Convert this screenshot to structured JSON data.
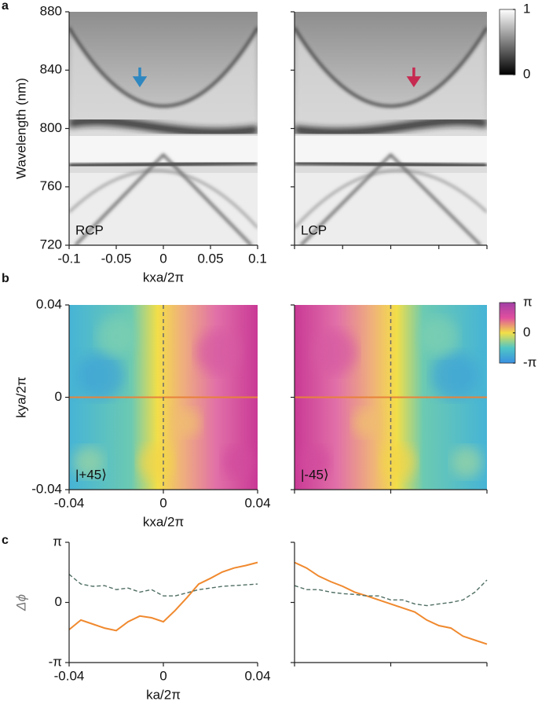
{
  "chart_data": [
    {
      "type": "heatmap",
      "panel": "a",
      "colormap": "gray",
      "ylabel": "Wavelength (nm)",
      "xlabel": "kxa/2π",
      "annotation": "RCP",
      "arrow": {
        "x": -0.025,
        "y": 830,
        "color": "#2f87c0"
      },
      "xlim": [
        -0.1,
        0.1
      ],
      "ylim": [
        720,
        880
      ],
      "xticks": [
        -0.1,
        -0.05,
        0,
        0.05,
        0.1
      ],
      "yticks": [
        720,
        760,
        800,
        840,
        880
      ]
    },
    {
      "type": "heatmap",
      "colormap": "gray",
      "annotation": "LCP",
      "tick_labels": false,
      "arrow": {
        "x": 0.024,
        "y": 830,
        "color": "#c62a50"
      },
      "xlim": [
        -0.1,
        0.1
      ],
      "ylim": [
        720,
        880
      ],
      "xticks": [
        -0.1,
        -0.05,
        0,
        0.05,
        0.1
      ],
      "yticks": [
        720,
        760,
        800,
        840,
        880
      ],
      "colorbar": {
        "clim": [
          0,
          1
        ],
        "ticks": [
          0,
          1
        ]
      }
    },
    {
      "type": "heatmap",
      "panel": "b",
      "colormap": "phase",
      "ylabel": "kya/2π",
      "xlabel": "kxa/2π",
      "annotation": "|+45⟩",
      "xlim": [
        -0.04,
        0.04
      ],
      "ylim": [
        -0.04,
        0.04
      ],
      "xticks": [
        -0.04,
        0,
        0.04
      ],
      "yticks": [
        -0.04,
        0,
        0.04
      ]
    },
    {
      "type": "heatmap",
      "colormap": "phase",
      "annotation": "|-45⟩",
      "tick_labels": false,
      "xlim": [
        -0.04,
        0.04
      ],
      "ylim": [
        -0.04,
        0.04
      ],
      "xticks": [
        -0.04,
        0,
        0.04
      ],
      "yticks": [
        -0.04,
        0,
        0.04
      ],
      "colorbar": {
        "clim": [
          -3.1416,
          3.1416
        ],
        "ticks": [
          {
            "value": 3.1416,
            "label": "π"
          },
          0,
          {
            "value": -3.1416,
            "label": "-π"
          }
        ]
      }
    },
    {
      "type": "line",
      "panel": "c",
      "ylabel": "Δϕ",
      "xlabel": "ka/2π",
      "xlim": [
        -0.04,
        0.04
      ],
      "ylim": [
        -3.1416,
        3.1416
      ],
      "xticks": [
        -0.04,
        0,
        0.04
      ],
      "yticks": [
        {
          "value": -3.1416,
          "label": "-π"
        },
        0,
        {
          "value": 3.1416,
          "label": "π"
        }
      ],
      "x": [
        -0.04,
        -0.035,
        -0.03,
        -0.025,
        -0.02,
        -0.015,
        -0.01,
        -0.005,
        0,
        0.005,
        0.01,
        0.015,
        0.02,
        0.025,
        0.03,
        0.035,
        0.04
      ],
      "series": [
        {
          "color": "#f0892e",
          "style": "solid",
          "values": [
            -1.42,
            -0.92,
            -1.13,
            -1.34,
            -1.47,
            -1.01,
            -0.71,
            -0.8,
            -1.01,
            -0.42,
            0.25,
            0.96,
            1.26,
            1.59,
            1.8,
            1.93,
            2.09
          ]
        },
        {
          "color": "#4f6e62",
          "style": "dashed",
          "values": [
            1.47,
            0.96,
            0.84,
            0.88,
            0.67,
            0.75,
            0.54,
            0.67,
            0.34,
            0.34,
            0.5,
            0.67,
            0.75,
            0.84,
            0.88,
            0.92,
            0.96
          ]
        }
      ]
    },
    {
      "type": "line",
      "tick_labels": false,
      "xlim": [
        -0.04,
        0.04
      ],
      "ylim": [
        -3.1416,
        3.1416
      ],
      "xticks": [
        -0.04,
        0,
        0.04
      ],
      "yticks": [
        {
          "value": -3.1416,
          "label": "-π"
        },
        0,
        {
          "value": 3.1416,
          "label": "π"
        }
      ],
      "x": [
        -0.04,
        -0.035,
        -0.03,
        -0.025,
        -0.02,
        -0.015,
        -0.01,
        -0.005,
        0,
        0.005,
        0.01,
        0.015,
        0.02,
        0.025,
        0.03,
        0.035,
        0.04
      ],
      "series": [
        {
          "color": "#f0892e",
          "style": "solid",
          "values": [
            2.09,
            1.8,
            1.38,
            1.09,
            0.84,
            0.54,
            0.34,
            0.13,
            -0.08,
            -0.29,
            -0.5,
            -0.92,
            -1.21,
            -1.34,
            -1.76,
            -1.97,
            -2.18
          ]
        },
        {
          "color": "#4f6e62",
          "style": "dashed",
          "values": [
            0.88,
            0.67,
            0.67,
            0.54,
            0.46,
            0.42,
            0.34,
            0.34,
            0.13,
            0.13,
            -0.08,
            -0.17,
            -0.08,
            0,
            0.13,
            0.54,
            1.17
          ]
        }
      ]
    }
  ]
}
